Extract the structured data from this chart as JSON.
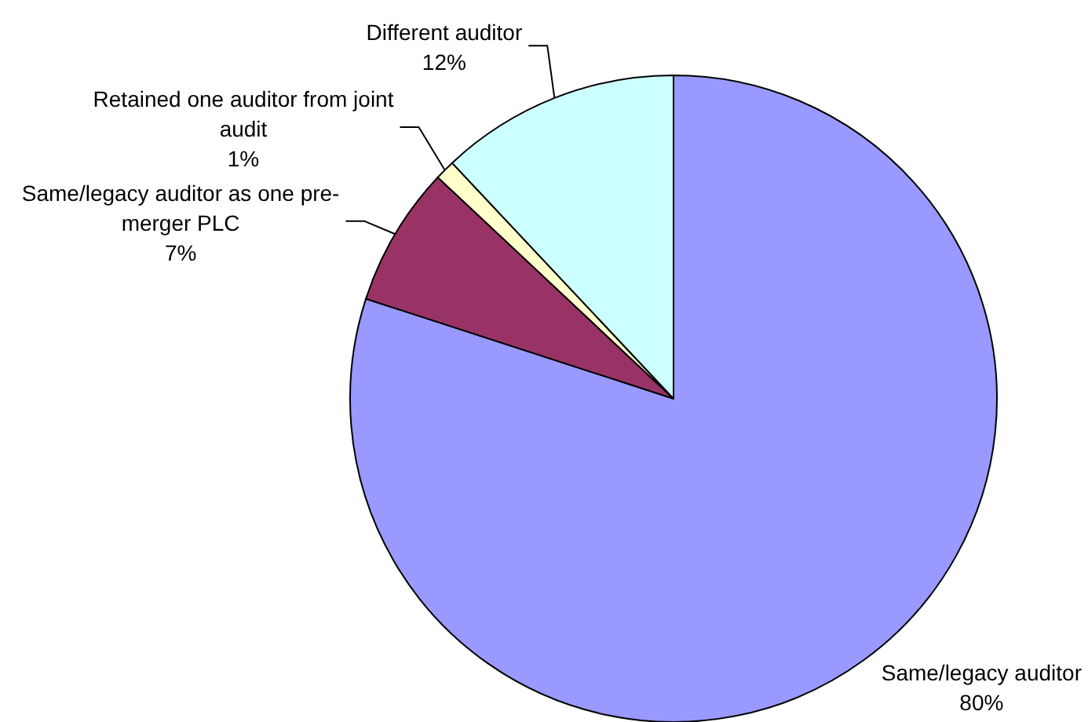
{
  "chart_data": {
    "type": "pie",
    "categories": [
      "Same/legacy auditor",
      "Same/legacy auditor as one pre-merger PLC",
      "Retained one auditor from joint audit",
      "Different auditor"
    ],
    "values": [
      80,
      7,
      1,
      12
    ],
    "colors": [
      "#9999ff",
      "#993366",
      "#ffffcc",
      "#ccffff"
    ],
    "value_labels": [
      "80%",
      "7%",
      "1%",
      "12%"
    ]
  }
}
